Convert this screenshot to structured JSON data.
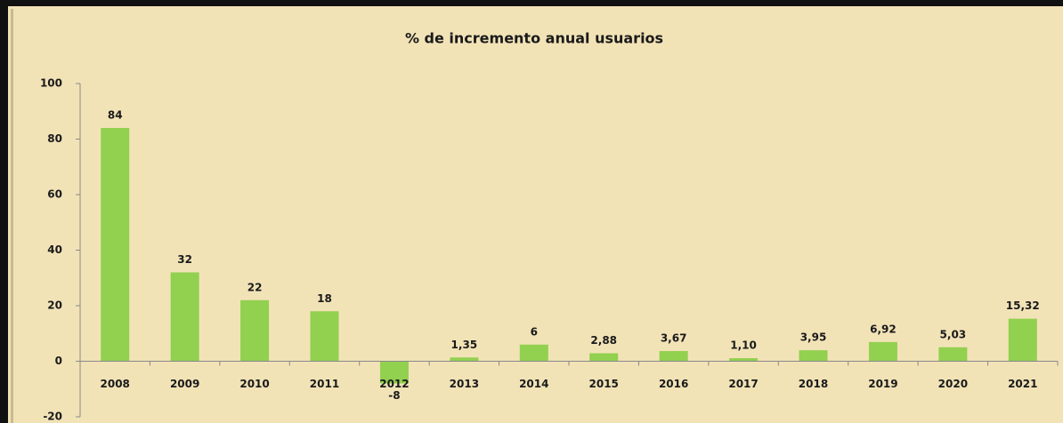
{
  "chart_data": {
    "type": "bar",
    "title": "% de incremento anual usuarios",
    "categories": [
      "2008",
      "2009",
      "2010",
      "2011",
      "2012",
      "2013",
      "2014",
      "2015",
      "2016",
      "2017",
      "2018",
      "2019",
      "2020",
      "2021"
    ],
    "values": [
      84,
      32,
      22,
      18,
      -8,
      1.35,
      6,
      2.88,
      3.67,
      1.1,
      3.95,
      6.92,
      5.03,
      15.32
    ],
    "value_labels": [
      "84",
      "32",
      "22",
      "18",
      "-8",
      "1,35",
      "6",
      "2,88",
      "3,67",
      "1,10",
      "3,95",
      "6,92",
      "5,03",
      "15,32"
    ],
    "color": "#92d050",
    "ylim": [
      -20,
      100
    ],
    "yticks": [
      -20,
      0,
      20,
      40,
      60,
      80,
      100
    ],
    "grid": false
  }
}
